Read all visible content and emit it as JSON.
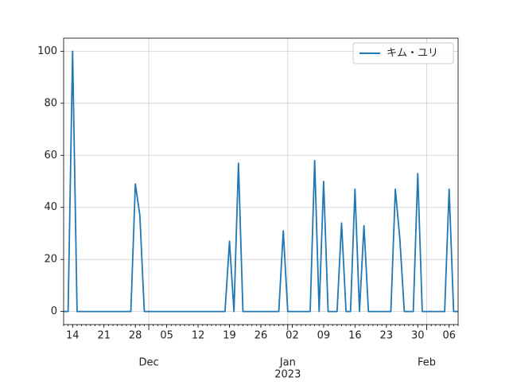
{
  "chart_data": {
    "type": "line",
    "x": [
      "2022-11-12",
      "2022-11-13",
      "2022-11-14",
      "2022-11-15",
      "2022-11-16",
      "2022-11-17",
      "2022-11-18",
      "2022-11-19",
      "2022-11-20",
      "2022-11-21",
      "2022-11-22",
      "2022-11-23",
      "2022-11-24",
      "2022-11-25",
      "2022-11-26",
      "2022-11-27",
      "2022-11-28",
      "2022-11-29",
      "2022-11-30",
      "2022-12-01",
      "2022-12-02",
      "2022-12-03",
      "2022-12-04",
      "2022-12-05",
      "2022-12-06",
      "2022-12-07",
      "2022-12-08",
      "2022-12-09",
      "2022-12-10",
      "2022-12-11",
      "2022-12-12",
      "2022-12-13",
      "2022-12-14",
      "2022-12-15",
      "2022-12-16",
      "2022-12-17",
      "2022-12-18",
      "2022-12-19",
      "2022-12-20",
      "2022-12-21",
      "2022-12-22",
      "2022-12-23",
      "2022-12-24",
      "2022-12-25",
      "2022-12-26",
      "2022-12-27",
      "2022-12-28",
      "2022-12-29",
      "2022-12-30",
      "2022-12-31",
      "2023-01-01",
      "2023-01-02",
      "2023-01-03",
      "2023-01-04",
      "2023-01-05",
      "2023-01-06",
      "2023-01-07",
      "2023-01-08",
      "2023-01-09",
      "2023-01-10",
      "2023-01-11",
      "2023-01-12",
      "2023-01-13",
      "2023-01-14",
      "2023-01-15",
      "2023-01-16",
      "2023-01-17",
      "2023-01-18",
      "2023-01-19",
      "2023-01-20",
      "2023-01-21",
      "2023-01-22",
      "2023-01-23",
      "2023-01-24",
      "2023-01-25",
      "2023-01-26",
      "2023-01-27",
      "2023-01-28",
      "2023-01-29",
      "2023-01-30",
      "2023-01-31",
      "2023-02-01",
      "2023-02-02",
      "2023-02-03",
      "2023-02-04",
      "2023-02-05",
      "2023-02-06",
      "2023-02-07",
      "2023-02-08"
    ],
    "series": [
      {
        "name": "キム・ユリ",
        "color": "#1f77b4",
        "values": [
          0,
          0,
          100,
          0,
          0,
          0,
          0,
          0,
          0,
          0,
          0,
          0,
          0,
          0,
          0,
          0,
          49,
          37,
          0,
          0,
          0,
          0,
          0,
          0,
          0,
          0,
          0,
          0,
          0,
          0,
          0,
          0,
          0,
          0,
          0,
          0,
          0,
          27,
          0,
          57,
          0,
          0,
          0,
          0,
          0,
          0,
          0,
          0,
          0,
          31,
          0,
          0,
          0,
          0,
          0,
          0,
          58,
          0,
          50,
          0,
          0,
          0,
          34,
          0,
          0,
          47,
          0,
          33,
          0,
          0,
          0,
          0,
          0,
          0,
          47,
          28,
          0,
          0,
          0,
          53,
          0,
          0,
          0,
          0,
          0,
          0,
          47,
          0,
          0
        ]
      }
    ],
    "xlim": [
      "2022-11-12",
      "2023-02-08"
    ],
    "xticks": [
      {
        "value": "2022-11-14",
        "label": "14"
      },
      {
        "value": "2022-11-21",
        "label": "21"
      },
      {
        "value": "2022-11-28",
        "label": "28"
      },
      {
        "value": "2022-12-05",
        "label": "05"
      },
      {
        "value": "2022-12-12",
        "label": "12"
      },
      {
        "value": "2022-12-19",
        "label": "19"
      },
      {
        "value": "2022-12-26",
        "label": "26"
      },
      {
        "value": "2023-01-02",
        "label": "02"
      },
      {
        "value": "2023-01-09",
        "label": "09"
      },
      {
        "value": "2023-01-16",
        "label": "16"
      },
      {
        "value": "2023-01-23",
        "label": "23"
      },
      {
        "value": "2023-01-30",
        "label": "30"
      },
      {
        "value": "2023-02-06",
        "label": "06"
      }
    ],
    "xmajorticks": [
      {
        "value": "2022-12-01",
        "label": "Dec"
      },
      {
        "value": "2023-01-01",
        "label": "Jan",
        "sublabel": "2023"
      },
      {
        "value": "2023-02-01",
        "label": "Feb"
      }
    ],
    "ylim": [
      -5,
      105
    ],
    "yticks": [
      0,
      20,
      40,
      60,
      80,
      100
    ],
    "grid": true,
    "legend": "upper right"
  }
}
